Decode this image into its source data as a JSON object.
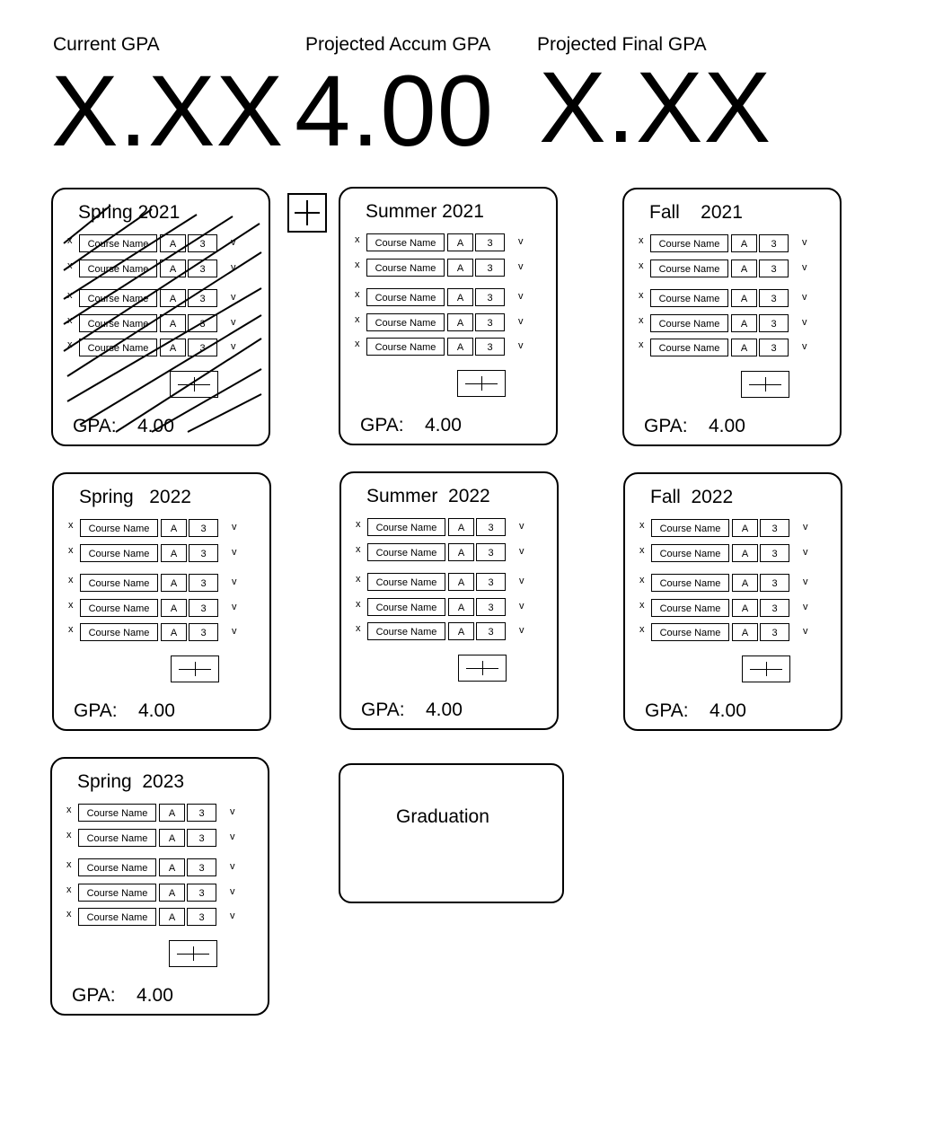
{
  "header": {
    "current_gpa_label": "Current GPA",
    "current_gpa_value": "X.XX",
    "projected_accum_label": "Projected Accum GPA",
    "projected_accum_value": "4.00",
    "projected_final_label": "Projected Final GPA",
    "projected_final_value": "X.XX"
  },
  "terms": [
    {
      "title": "Spring 2021",
      "gpa_label": "GPA:",
      "gpa": "4.00",
      "completed": true,
      "courses": [
        {
          "remove": "x",
          "name": "Course Name",
          "grade": "A",
          "credits": "3",
          "dropdown": "v"
        },
        {
          "remove": "x",
          "name": "Course Name",
          "grade": "A",
          "credits": "3",
          "dropdown": "v"
        },
        {
          "remove": "x",
          "name": "Course Name",
          "grade": "A",
          "credits": "3",
          "dropdown": "v"
        },
        {
          "remove": "x",
          "name": "Course Name",
          "grade": "A",
          "credits": "3",
          "dropdown": "v"
        },
        {
          "remove": "x",
          "name": "Course Name",
          "grade": "A",
          "credits": "3",
          "dropdown": "v"
        }
      ]
    },
    {
      "title": "Summer 2021",
      "gpa_label": "GPA:",
      "gpa": "4.00",
      "courses": [
        {
          "remove": "x",
          "name": "Course Name",
          "grade": "A",
          "credits": "3",
          "dropdown": "v"
        },
        {
          "remove": "x",
          "name": "Course Name",
          "grade": "A",
          "credits": "3",
          "dropdown": "v"
        },
        {
          "remove": "x",
          "name": "Course Name",
          "grade": "A",
          "credits": "3",
          "dropdown": "v"
        },
        {
          "remove": "x",
          "name": "Course Name",
          "grade": "A",
          "credits": "3",
          "dropdown": "v"
        },
        {
          "remove": "x",
          "name": "Course Name",
          "grade": "A",
          "credits": "3",
          "dropdown": "v"
        }
      ]
    },
    {
      "title": "Fall    2021",
      "gpa_label": "GPA:",
      "gpa": "4.00",
      "courses": [
        {
          "remove": "x",
          "name": "Course Name",
          "grade": "A",
          "credits": "3",
          "dropdown": "v"
        },
        {
          "remove": "x",
          "name": "Course Name",
          "grade": "A",
          "credits": "3",
          "dropdown": "v"
        },
        {
          "remove": "x",
          "name": "Course Name",
          "grade": "A",
          "credits": "3",
          "dropdown": "v"
        },
        {
          "remove": "x",
          "name": "Course Name",
          "grade": "A",
          "credits": "3",
          "dropdown": "v"
        },
        {
          "remove": "x",
          "name": "Course Name",
          "grade": "A",
          "credits": "3",
          "dropdown": "v"
        }
      ]
    },
    {
      "title": "Spring   2022",
      "gpa_label": "GPA:",
      "gpa": "4.00",
      "courses": [
        {
          "remove": "x",
          "name": "Course Name",
          "grade": "A",
          "credits": "3",
          "dropdown": "v"
        },
        {
          "remove": "x",
          "name": "Course Name",
          "grade": "A",
          "credits": "3",
          "dropdown": "v"
        },
        {
          "remove": "x",
          "name": "Course Name",
          "grade": "A",
          "credits": "3",
          "dropdown": "v"
        },
        {
          "remove": "x",
          "name": "Course Name",
          "grade": "A",
          "credits": "3",
          "dropdown": "v"
        },
        {
          "remove": "x",
          "name": "Course Name",
          "grade": "A",
          "credits": "3",
          "dropdown": "v"
        }
      ]
    },
    {
      "title": "Summer  2022",
      "gpa_label": "GPA:",
      "gpa": "4.00",
      "courses": [
        {
          "remove": "x",
          "name": "Course Name",
          "grade": "A",
          "credits": "3",
          "dropdown": "v"
        },
        {
          "remove": "x",
          "name": "Course Name",
          "grade": "A",
          "credits": "3",
          "dropdown": "v"
        },
        {
          "remove": "x",
          "name": "Course Name",
          "grade": "A",
          "credits": "3",
          "dropdown": "v"
        },
        {
          "remove": "x",
          "name": "Course Name",
          "grade": "A",
          "credits": "3",
          "dropdown": "v"
        },
        {
          "remove": "x",
          "name": "Course Name",
          "grade": "A",
          "credits": "3",
          "dropdown": "v"
        }
      ]
    },
    {
      "title": "Fall  2022",
      "gpa_label": "GPA:",
      "gpa": "4.00",
      "courses": [
        {
          "remove": "x",
          "name": "Course Name",
          "grade": "A",
          "credits": "3",
          "dropdown": "v"
        },
        {
          "remove": "x",
          "name": "Course Name",
          "grade": "A",
          "credits": "3",
          "dropdown": "v"
        },
        {
          "remove": "x",
          "name": "Course Name",
          "grade": "A",
          "credits": "3",
          "dropdown": "v"
        },
        {
          "remove": "x",
          "name": "Course Name",
          "grade": "A",
          "credits": "3",
          "dropdown": "v"
        },
        {
          "remove": "x",
          "name": "Course Name",
          "grade": "A",
          "credits": "3",
          "dropdown": "v"
        }
      ]
    },
    {
      "title": "Spring  2023",
      "gpa_label": "GPA:",
      "gpa": "4.00",
      "courses": [
        {
          "remove": "x",
          "name": "Course Name",
          "grade": "A",
          "credits": "3",
          "dropdown": "v"
        },
        {
          "remove": "x",
          "name": "Course Name",
          "grade": "A",
          "credits": "3",
          "dropdown": "v"
        },
        {
          "remove": "x",
          "name": "Course Name",
          "grade": "A",
          "credits": "3",
          "dropdown": "v"
        },
        {
          "remove": "x",
          "name": "Course Name",
          "grade": "A",
          "credits": "3",
          "dropdown": "v"
        },
        {
          "remove": "x",
          "name": "Course Name",
          "grade": "A",
          "credits": "3",
          "dropdown": "v"
        }
      ]
    }
  ],
  "graduation": {
    "title": "Graduation"
  },
  "icons": {
    "add_term": "plus-icon",
    "add_course": "plus-icon"
  }
}
